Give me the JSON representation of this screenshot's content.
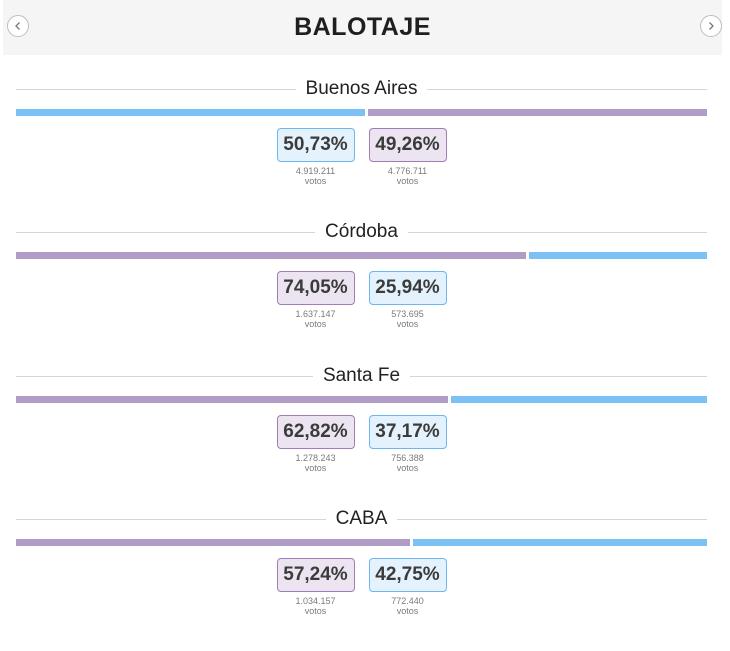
{
  "header": {
    "title": "BALOTAJE"
  },
  "colors": {
    "purple": "#b09cc5",
    "blue": "#7cc1f4"
  },
  "votes_label": "votos",
  "sections": [
    {
      "name": "Buenos Aires",
      "bar": [
        {
          "color": "blue",
          "share": 50.73
        },
        {
          "color": "purple",
          "share": 49.26
        }
      ],
      "candidates": [
        {
          "color": "blue",
          "pct": "50,73%",
          "votes": "4.919.211"
        },
        {
          "color": "purple",
          "pct": "49,26%",
          "votes": "4.776.711"
        }
      ]
    },
    {
      "name": "Córdoba",
      "bar": [
        {
          "color": "purple",
          "share": 74.05
        },
        {
          "color": "blue",
          "share": 25.94
        }
      ],
      "candidates": [
        {
          "color": "purple",
          "pct": "74,05%",
          "votes": "1.637.147"
        },
        {
          "color": "blue",
          "pct": "25,94%",
          "votes": "573.695"
        }
      ]
    },
    {
      "name": "Santa Fe",
      "bar": [
        {
          "color": "purple",
          "share": 62.82
        },
        {
          "color": "blue",
          "share": 37.17
        }
      ],
      "candidates": [
        {
          "color": "purple",
          "pct": "62,82%",
          "votes": "1.278.243"
        },
        {
          "color": "blue",
          "pct": "37,17%",
          "votes": "756.388"
        }
      ]
    },
    {
      "name": "CABA",
      "bar": [
        {
          "color": "purple",
          "share": 57.24
        },
        {
          "color": "blue",
          "share": 42.75
        }
      ],
      "candidates": [
        {
          "color": "purple",
          "pct": "57,24%",
          "votes": "1.034.157"
        },
        {
          "color": "blue",
          "pct": "42,75%",
          "votes": "772.440"
        }
      ]
    }
  ]
}
